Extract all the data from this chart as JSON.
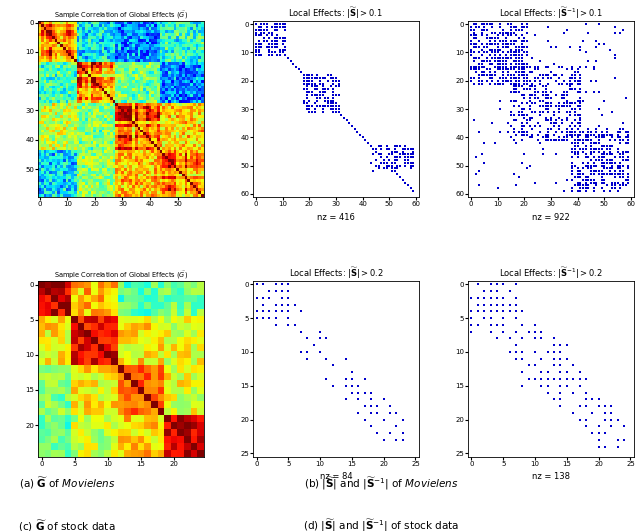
{
  "fig_width": 6.4,
  "fig_height": 5.31,
  "bg_color": "#ffffff",
  "movielens_heatmap_size": 60,
  "stock_heatmap_size": 25,
  "movielens_S_nz": 416,
  "movielens_Sinv_nz": 922,
  "stock_S_nz": 84,
  "stock_Sinv_nz": 138,
  "dot_color": "#0000cc",
  "heatmap_title": "Sample Correlation of Global Effects ($\\widetilde{G}$)",
  "movielens_S_title": "Local Effects: $|\\widetilde{\\mathbf{S}}| > 0.1$",
  "movielens_Sinv_title": "Local Effects: $|\\widetilde{\\mathbf{S}}^{-1}| > 0.1$",
  "stock_S_title": "Local Effects: $|\\widetilde{\\mathbf{S}}| > 0.2$",
  "stock_Sinv_title": "Local Effects: $|\\widetilde{\\mathbf{S}}^{-1}| > 0.2$",
  "movielens_ticks": [
    0,
    10,
    20,
    30,
    40,
    50,
    60
  ],
  "stock_ticks": [
    0,
    5,
    10,
    15,
    20,
    25
  ]
}
